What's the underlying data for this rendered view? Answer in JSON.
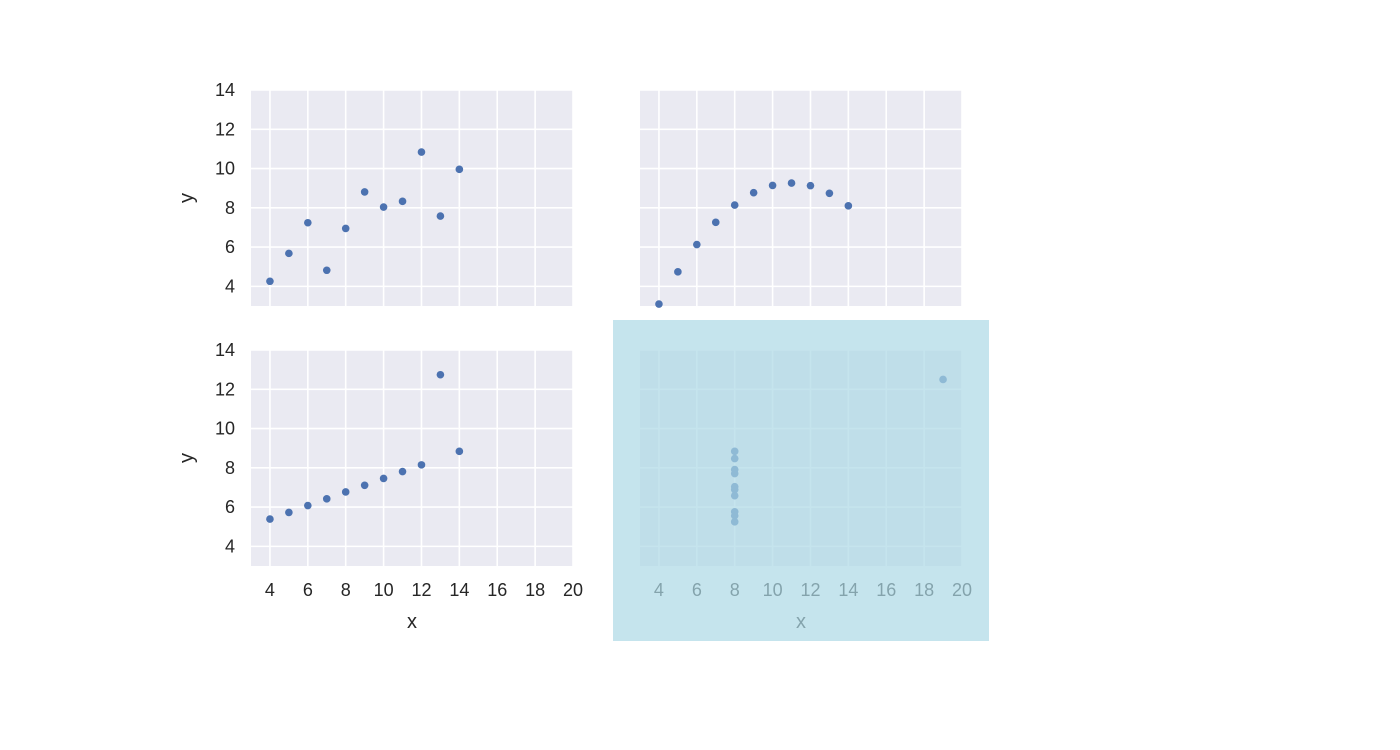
{
  "colors": {
    "panel_bg": "#eaeaf2",
    "grid": "#ffffff",
    "marker": "#4c72b0",
    "highlight": "#add8e6",
    "text": "#262626"
  },
  "chart_data": [
    {
      "type": "scatter",
      "panel": "top-left",
      "x": [
        4,
        5,
        6,
        7,
        8,
        9,
        10,
        11,
        12,
        13,
        14
      ],
      "y": [
        4.26,
        5.68,
        7.24,
        4.82,
        6.95,
        8.81,
        8.04,
        8.33,
        10.84,
        7.58,
        9.96
      ],
      "xlim": [
        3,
        20
      ],
      "ylim": [
        3,
        14
      ],
      "xticks": [
        4,
        6,
        8,
        10,
        12,
        14,
        16,
        18,
        20
      ],
      "yticks": [
        4,
        6,
        8,
        10,
        12,
        14
      ],
      "xlabel": "",
      "ylabel": "y",
      "show_xticklabels": false,
      "show_yticklabels": true,
      "grid": true,
      "highlighted": false
    },
    {
      "type": "scatter",
      "panel": "top-right",
      "x": [
        4,
        5,
        6,
        7,
        8,
        9,
        10,
        11,
        12,
        13,
        14
      ],
      "y": [
        3.1,
        4.74,
        6.13,
        7.26,
        8.14,
        8.77,
        9.14,
        9.26,
        9.13,
        8.74,
        8.1
      ],
      "xlim": [
        3,
        20
      ],
      "ylim": [
        3,
        14
      ],
      "xticks": [
        4,
        6,
        8,
        10,
        12,
        14,
        16,
        18,
        20
      ],
      "yticks": [
        4,
        6,
        8,
        10,
        12,
        14
      ],
      "xlabel": "",
      "ylabel": "",
      "show_xticklabels": false,
      "show_yticklabels": false,
      "grid": true,
      "highlighted": false
    },
    {
      "type": "scatter",
      "panel": "bottom-left",
      "x": [
        4,
        5,
        6,
        7,
        8,
        9,
        10,
        11,
        12,
        13,
        14
      ],
      "y": [
        5.39,
        5.73,
        6.08,
        6.42,
        6.77,
        7.11,
        7.46,
        7.81,
        8.15,
        12.74,
        8.84
      ],
      "xlim": [
        3,
        20
      ],
      "ylim": [
        3,
        14
      ],
      "xticks": [
        4,
        6,
        8,
        10,
        12,
        14,
        16,
        18,
        20
      ],
      "yticks": [
        4,
        6,
        8,
        10,
        12,
        14
      ],
      "xlabel": "x",
      "ylabel": "y",
      "show_xticklabels": true,
      "show_yticklabels": true,
      "grid": true,
      "highlighted": false
    },
    {
      "type": "scatter",
      "panel": "bottom-right",
      "x": [
        8,
        8,
        8,
        8,
        8,
        8,
        8,
        8,
        8,
        8,
        19
      ],
      "y": [
        6.58,
        5.76,
        7.71,
        8.84,
        8.47,
        7.04,
        5.25,
        5.56,
        7.91,
        6.89,
        12.5
      ],
      "xlim": [
        3,
        20
      ],
      "ylim": [
        3,
        14
      ],
      "xticks": [
        4,
        6,
        8,
        10,
        12,
        14,
        16,
        18,
        20
      ],
      "yticks": [
        4,
        6,
        8,
        10,
        12,
        14
      ],
      "xlabel": "x",
      "ylabel": "",
      "show_xticklabels": true,
      "show_yticklabels": false,
      "grid": true,
      "highlighted": true
    }
  ]
}
